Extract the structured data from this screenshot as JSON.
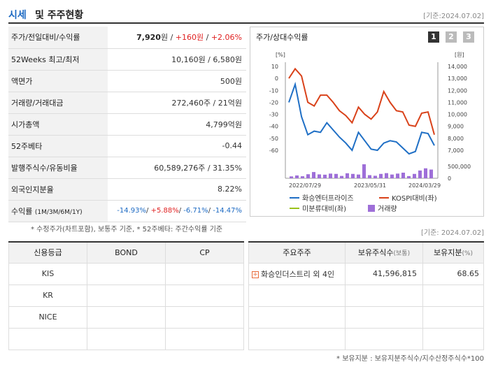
{
  "header": {
    "title_main": "시세",
    "title_rest": "및 주주현황",
    "date": "[기준:2024.07.02]"
  },
  "info_rows": [
    {
      "label": "주가/전일대비/수익률"
    },
    {
      "label": "52Weeks 최고/최저",
      "value": "10,160원 / 6,580원"
    },
    {
      "label": "액면가",
      "value": "500원"
    },
    {
      "label": "거래량/거래대금",
      "value": "272,460주 / 21억원"
    },
    {
      "label": "시가총액",
      "value": "4,799억원"
    },
    {
      "label": "52주베타",
      "value": "-0.44"
    },
    {
      "label": "발행주식수/유동비율",
      "value": "60,589,276주 / 31.35%"
    },
    {
      "label": "외국인지분율",
      "value": "8.22%"
    },
    {
      "label": "수익률",
      "label_small": "(1M/3M/6M/1Y)"
    }
  ],
  "price_row": {
    "price": "7,920",
    "price_unit": "원 / ",
    "change": "+160원",
    "sep": " / ",
    "rate": "+2.06%"
  },
  "returns_row": {
    "r1m": "-14.93%",
    "r3m": "+5.88%",
    "r6m": "-6.71%",
    "r1y": "-14.47%",
    "sep": "/ "
  },
  "chart_panel": {
    "title": "주가/상대수익률",
    "pages": [
      "1",
      "2",
      "3"
    ],
    "left_unit": "[%]",
    "right_unit": "[원]",
    "legend": {
      "company": "화승엔터프라이즈",
      "kospi": "KOSPI대비(좌)",
      "undervalued": "미분류대비(좌)",
      "volume": "거래량"
    }
  },
  "chart_data": {
    "type": "line",
    "x_ticks": [
      "2022/07/29",
      "2023/05/31",
      "2024/03/29"
    ],
    "left_axis": {
      "ticks": [
        "10",
        "0",
        "-10",
        "-20",
        "-30",
        "-40",
        "-50",
        "-60"
      ],
      "ylim": [
        -60,
        10
      ]
    },
    "right_axis": {
      "ticks": [
        "14,000",
        "13,000",
        "12,000",
        "11,000",
        "10,000",
        "9,000",
        "8,000",
        "7,000"
      ],
      "ylim": [
        7000,
        14000
      ]
    },
    "volume_axis": {
      "ticks": [
        "500,000",
        "0"
      ]
    },
    "series": [
      {
        "name": "화승엔터프라이즈",
        "color": "#1f6fc5",
        "axis": "right",
        "values": [
          11000,
          12500,
          9800,
          8300,
          8600,
          8500,
          9300,
          8700,
          8100,
          7600,
          7000,
          8500,
          7800,
          7100,
          7000,
          7600,
          7800,
          7700,
          7200,
          6700,
          6900,
          8500,
          8400,
          7400
        ]
      },
      {
        "name": "KOSPI대비(좌)",
        "color": "#d9421a",
        "axis": "left",
        "values": [
          0,
          8,
          2,
          -20,
          -23,
          -14,
          -14,
          -20,
          -27,
          -31,
          -37,
          -24,
          -30,
          -34,
          -28,
          -11,
          -20,
          -27,
          -28,
          -39,
          -40,
          -29,
          -28,
          -47
        ]
      }
    ],
    "volume": [
      120000,
      180000,
      130000,
      260000,
      400000,
      250000,
      230000,
      300000,
      280000,
      150000,
      320000,
      280000,
      240000,
      900000,
      200000,
      160000,
      280000,
      330000,
      240000,
      300000,
      360000,
      140000,
      280000,
      500000,
      640000,
      560000
    ]
  },
  "note1": "* 수정주가(차트포함), 보통주 기준, * 52주베타: 주간수익률 기준",
  "date2": "[기준: 2024.07.02]",
  "credit_table": {
    "headers": [
      "신용등급",
      "BOND",
      "CP"
    ],
    "rows": [
      [
        "KIS",
        "",
        ""
      ],
      [
        "KR",
        "",
        ""
      ],
      [
        "NICE",
        "",
        ""
      ],
      [
        "",
        "",
        ""
      ]
    ]
  },
  "holder_table": {
    "headers": [
      "주요주주",
      "보유주식수",
      "(보통)",
      "보유지분",
      "(%)"
    ],
    "rows": [
      {
        "name": "화승인더스트리 외 4인",
        "shares": "41,596,815",
        "pct": "68.65"
      }
    ]
  },
  "note2": "* 보유지분 : 보유지분주식수/지수산정주식수*100"
}
